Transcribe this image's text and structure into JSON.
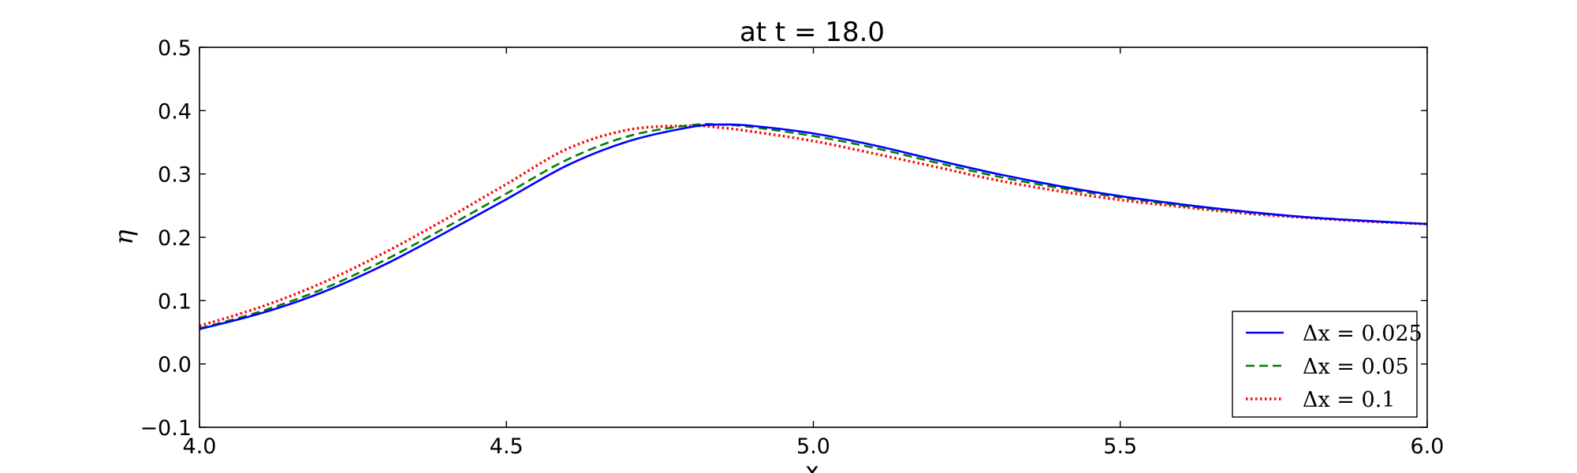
{
  "chart_data": {
    "type": "line",
    "title": "at t = 18.0",
    "xlabel": "x",
    "ylabel": "η",
    "xlim": [
      4.0,
      6.0
    ],
    "ylim": [
      -0.1,
      0.5
    ],
    "xticks": [
      4.0,
      4.5,
      5.0,
      5.5,
      6.0
    ],
    "xtick_labels": [
      "4.0",
      "4.5",
      "5.0",
      "5.5",
      "6.0"
    ],
    "yticks": [
      -0.1,
      0.0,
      0.1,
      0.2,
      0.3,
      0.4,
      0.5
    ],
    "ytick_labels": [
      "−0.1",
      "0.0",
      "0.1",
      "0.2",
      "0.3",
      "0.4",
      "0.5"
    ],
    "grid": false,
    "legend_position": "lower-right",
    "series": [
      {
        "name": "Δx = 0.025",
        "color": "#0000ff",
        "style": "solid",
        "x": [
          4.0,
          4.1,
          4.2,
          4.3,
          4.4,
          4.5,
          4.6,
          4.7,
          4.8,
          4.85,
          4.9,
          5.0,
          5.1,
          5.2,
          5.3,
          5.4,
          5.5,
          5.6,
          5.7,
          5.8,
          5.9,
          6.0
        ],
        "y": [
          0.055,
          0.08,
          0.113,
          0.156,
          0.207,
          0.26,
          0.314,
          0.352,
          0.374,
          0.378,
          0.376,
          0.364,
          0.345,
          0.322,
          0.3,
          0.281,
          0.265,
          0.252,
          0.241,
          0.232,
          0.226,
          0.221
        ]
      },
      {
        "name": "Δx = 0.05",
        "color": "#008000",
        "style": "dashed",
        "x": [
          4.0,
          4.1,
          4.2,
          4.3,
          4.4,
          4.5,
          4.6,
          4.7,
          4.8,
          4.85,
          4.9,
          5.0,
          5.1,
          5.2,
          5.3,
          5.4,
          5.5,
          5.6,
          5.7,
          5.8,
          5.9,
          6.0
        ],
        "y": [
          0.056,
          0.083,
          0.118,
          0.163,
          0.215,
          0.269,
          0.323,
          0.36,
          0.377,
          0.378,
          0.374,
          0.36,
          0.341,
          0.318,
          0.296,
          0.278,
          0.263,
          0.25,
          0.24,
          0.232,
          0.226,
          0.221
        ]
      },
      {
        "name": "Δx = 0.1",
        "color": "#ff0000",
        "style": "dotted",
        "x": [
          4.0,
          4.1,
          4.2,
          4.3,
          4.4,
          4.5,
          4.6,
          4.7,
          4.8,
          4.85,
          4.9,
          5.0,
          5.1,
          5.2,
          5.3,
          5.4,
          5.5,
          5.6,
          5.7,
          5.8,
          5.9,
          6.0
        ],
        "y": [
          0.06,
          0.09,
          0.128,
          0.175,
          0.228,
          0.284,
          0.34,
          0.37,
          0.376,
          0.373,
          0.367,
          0.352,
          0.332,
          0.311,
          0.29,
          0.273,
          0.259,
          0.248,
          0.238,
          0.231,
          0.225,
          0.221
        ]
      }
    ]
  }
}
